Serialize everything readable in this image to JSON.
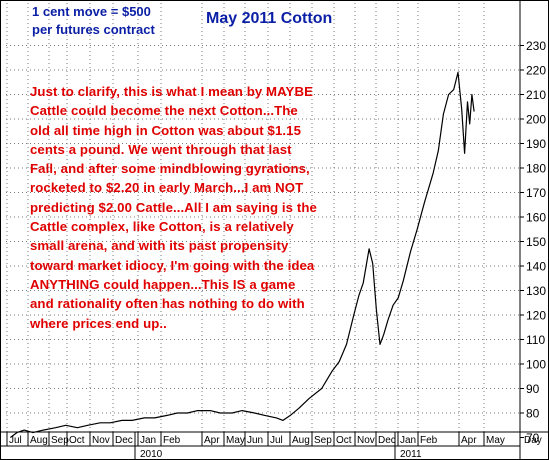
{
  "header": {
    "note_line1": "1 cent move = $500",
    "note_line2": "per futures contract",
    "title": "May 2011 Cotton"
  },
  "commentary": "Just to clarify, this is what I mean by MAYBE Cattle could become the next Cotton...The old all time high in Cotton was about $1.15 cents a pound. We went through that last Fall, and after some mindblowing gyrations, rocketed to $2.20 in early March...I am NOT predicting $2.00 Cattle...All I am saying is the Cattle complex, like Cotton, is a relatively small arena, and with its past propensity toward market idiocy, I'm going with the idea ANYTHING could happen...This IS a game and rationality often has nothing to do with where prices end up..",
  "chart_data": {
    "type": "line",
    "title": "May 2011 Cotton",
    "ylim": [
      60,
      230
    ],
    "y_ticks": [
      70,
      80,
      90,
      100,
      110,
      120,
      130,
      140,
      150,
      160,
      170,
      180,
      190,
      200,
      210,
      220,
      230
    ],
    "month_labels": [
      "Jul",
      "Aug",
      "Sep",
      "Oct",
      "Nov",
      "Dec",
      "Jan",
      "Feb",
      "Apr",
      "May",
      "Jun",
      "Jul",
      "Aug",
      "Sep",
      "Oct",
      "Nov",
      "Dec",
      "Jan",
      "Feb",
      "Apr",
      "May"
    ],
    "year_labels": [
      "2010",
      "2011"
    ],
    "x_axis_right_label": "Day",
    "grid": true,
    "colors": {
      "price_line": "#000000",
      "grid": "#7a7a7a",
      "frame": "#000000"
    },
    "series": [
      {
        "points": [
          [
            "2009-07-01",
            70
          ],
          [
            "2009-07-10",
            72
          ],
          [
            "2009-07-20",
            73
          ],
          [
            "2009-08-01",
            72
          ],
          [
            "2009-08-15",
            73
          ],
          [
            "2009-09-01",
            74
          ],
          [
            "2009-09-15",
            75
          ],
          [
            "2009-10-01",
            74
          ],
          [
            "2009-10-15",
            75
          ],
          [
            "2009-11-01",
            76
          ],
          [
            "2009-11-15",
            76
          ],
          [
            "2009-12-01",
            77
          ],
          [
            "2009-12-15",
            77
          ],
          [
            "2010-01-01",
            78
          ],
          [
            "2010-01-15",
            78
          ],
          [
            "2010-02-01",
            79
          ],
          [
            "2010-02-15",
            80
          ],
          [
            "2010-03-01",
            80
          ],
          [
            "2010-03-15",
            81
          ],
          [
            "2010-04-01",
            81
          ],
          [
            "2010-04-15",
            80
          ],
          [
            "2010-05-01",
            80
          ],
          [
            "2010-05-15",
            81
          ],
          [
            "2010-06-01",
            80
          ],
          [
            "2010-06-15",
            79
          ],
          [
            "2010-07-01",
            78
          ],
          [
            "2010-07-10",
            77
          ],
          [
            "2010-07-20",
            79
          ],
          [
            "2010-08-01",
            82
          ],
          [
            "2010-08-15",
            86
          ],
          [
            "2010-09-01",
            90
          ],
          [
            "2010-09-15",
            97
          ],
          [
            "2010-09-25",
            101
          ],
          [
            "2010-10-05",
            108
          ],
          [
            "2010-10-15",
            120
          ],
          [
            "2010-10-22",
            128
          ],
          [
            "2010-10-28",
            133
          ],
          [
            "2010-11-05",
            147
          ],
          [
            "2010-11-10",
            141
          ],
          [
            "2010-11-15",
            122
          ],
          [
            "2010-11-20",
            108
          ],
          [
            "2010-11-25",
            112
          ],
          [
            "2010-12-01",
            118
          ],
          [
            "2010-12-08",
            124
          ],
          [
            "2010-12-15",
            127
          ],
          [
            "2010-12-22",
            134
          ],
          [
            "2011-01-01",
            146
          ],
          [
            "2011-01-10",
            155
          ],
          [
            "2011-01-20",
            166
          ],
          [
            "2011-02-01",
            178
          ],
          [
            "2011-02-08",
            187
          ],
          [
            "2011-02-15",
            202
          ],
          [
            "2011-02-22",
            210
          ],
          [
            "2011-03-01",
            212
          ],
          [
            "2011-03-07",
            219
          ],
          [
            "2011-03-12",
            204
          ],
          [
            "2011-03-16",
            186
          ],
          [
            "2011-03-20",
            207
          ],
          [
            "2011-03-23",
            198
          ],
          [
            "2011-03-26",
            210
          ],
          [
            "2011-03-29",
            203
          ]
        ]
      }
    ]
  }
}
